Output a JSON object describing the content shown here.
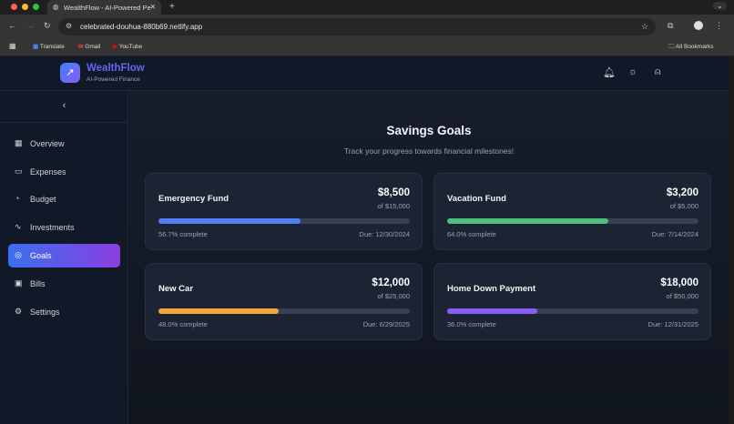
{
  "browser": {
    "tab_title": "WealthFlow - AI-Powered Pe",
    "url": "celebrated-douhua-880b69.netlify.app",
    "bookmarks": [
      "Translate",
      "Gmail",
      "YouTube"
    ],
    "all_bookmarks": "All Bookmarks"
  },
  "header": {
    "brand": "WealthFlow",
    "tagline": "AI-Powered Finance"
  },
  "sidebar": {
    "items": [
      {
        "label": "Overview",
        "icon": "grid-icon"
      },
      {
        "label": "Expenses",
        "icon": "credit-card-icon"
      },
      {
        "label": "Budget",
        "icon": "pie-chart-icon"
      },
      {
        "label": "Investments",
        "icon": "activity-icon"
      },
      {
        "label": "Goals",
        "icon": "target-icon",
        "active": true
      },
      {
        "label": "Bills",
        "icon": "calendar-icon"
      },
      {
        "label": "Settings",
        "icon": "gear-icon"
      }
    ]
  },
  "main": {
    "title": "Savings Goals",
    "subtitle": "Track your progress towards financial milestones!",
    "goals": [
      {
        "name": "Emergency Fund",
        "amount": "$8,500",
        "target": "of $15,000",
        "progress": 56.7,
        "complete": "56.7% complete",
        "due": "Due: 12/30/2024",
        "color": "#4f7ff0"
      },
      {
        "name": "Vacation Fund",
        "amount": "$3,200",
        "target": "of $5,000",
        "progress": 64.0,
        "complete": "64.0% complete",
        "due": "Due: 7/14/2024",
        "color": "#4fbf7f"
      },
      {
        "name": "New Car",
        "amount": "$12,000",
        "target": "of $25,000",
        "progress": 48.0,
        "complete": "48.0% complete",
        "due": "Due: 6/29/2025",
        "color": "#f0a53a"
      },
      {
        "name": "Home Down Payment",
        "amount": "$18,000",
        "target": "of $50,000",
        "progress": 36.0,
        "complete": "36.0% complete",
        "due": "Due: 12/31/2025",
        "color": "#8b5cf6"
      }
    ]
  }
}
